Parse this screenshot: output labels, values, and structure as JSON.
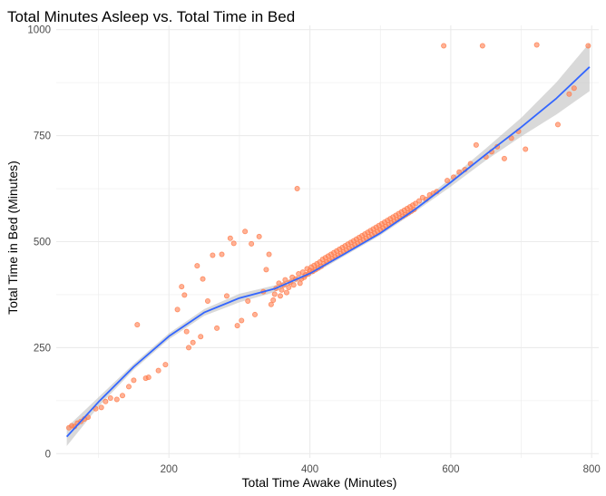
{
  "chart_data": {
    "type": "scatter",
    "title": "Total Minutes Asleep vs. Total Time in Bed",
    "xlabel": "Total Time Awake (Minutes)",
    "ylabel": "Total Time in Bed (Minutes)",
    "xlim": [
      40,
      810
    ],
    "ylim": [
      -10,
      1010
    ],
    "x_ticks": [
      200,
      400,
      600,
      800
    ],
    "y_ticks": [
      0,
      250,
      500,
      750,
      1000
    ],
    "grid": true,
    "legend": "none",
    "colors": {
      "points": "#FF7F50",
      "smooth_line": "#3366FF",
      "confidence_band": "#B3B3B3",
      "grid": "#EBEBEB"
    },
    "points": [
      [
        58,
        61
      ],
      [
        62,
        66
      ],
      [
        66,
        64
      ],
      [
        70,
        72
      ],
      [
        75,
        76
      ],
      [
        80,
        82
      ],
      [
        85,
        86
      ],
      [
        96,
        106
      ],
      [
        104,
        109
      ],
      [
        110,
        123
      ],
      [
        117,
        131
      ],
      [
        126,
        128
      ],
      [
        134,
        137
      ],
      [
        143,
        158
      ],
      [
        150,
        173
      ],
      [
        155,
        304
      ],
      [
        167,
        178
      ],
      [
        171,
        180
      ],
      [
        185,
        196
      ],
      [
        195,
        210
      ],
      [
        212,
        340
      ],
      [
        218,
        394
      ],
      [
        222,
        374
      ],
      [
        225,
        288
      ],
      [
        228,
        250
      ],
      [
        234,
        262
      ],
      [
        240,
        443
      ],
      [
        245,
        276
      ],
      [
        248,
        412
      ],
      [
        255,
        360
      ],
      [
        262,
        468
      ],
      [
        268,
        296
      ],
      [
        275,
        470
      ],
      [
        282,
        372
      ],
      [
        287,
        508
      ],
      [
        292,
        496
      ],
      [
        297,
        302
      ],
      [
        303,
        314
      ],
      [
        308,
        524
      ],
      [
        312,
        360
      ],
      [
        317,
        495
      ],
      [
        322,
        328
      ],
      [
        328,
        512
      ],
      [
        334,
        382
      ],
      [
        338,
        434
      ],
      [
        342,
        470
      ],
      [
        345,
        352
      ],
      [
        348,
        362
      ],
      [
        350,
        376
      ],
      [
        352,
        390
      ],
      [
        356,
        402
      ],
      [
        358,
        372
      ],
      [
        360,
        386
      ],
      [
        363,
        398
      ],
      [
        365,
        410
      ],
      [
        367,
        380
      ],
      [
        370,
        392
      ],
      [
        372,
        404
      ],
      [
        375,
        416
      ],
      [
        377,
        398
      ],
      [
        380,
        412
      ],
      [
        382,
        625
      ],
      [
        384,
        424
      ],
      [
        386,
        402
      ],
      [
        388,
        412
      ],
      [
        390,
        428
      ],
      [
        392,
        416
      ],
      [
        394,
        422
      ],
      [
        396,
        436
      ],
      [
        398,
        424
      ],
      [
        400,
        432
      ],
      [
        402,
        440
      ],
      [
        404,
        430
      ],
      [
        406,
        444
      ],
      [
        408,
        434
      ],
      [
        410,
        448
      ],
      [
        412,
        438
      ],
      [
        414,
        452
      ],
      [
        416,
        442
      ],
      [
        418,
        458
      ],
      [
        420,
        448
      ],
      [
        422,
        462
      ],
      [
        424,
        452
      ],
      [
        426,
        466
      ],
      [
        428,
        456
      ],
      [
        430,
        470
      ],
      [
        432,
        460
      ],
      [
        434,
        474
      ],
      [
        436,
        464
      ],
      [
        438,
        478
      ],
      [
        440,
        468
      ],
      [
        442,
        482
      ],
      [
        444,
        472
      ],
      [
        446,
        486
      ],
      [
        448,
        476
      ],
      [
        450,
        490
      ],
      [
        452,
        480
      ],
      [
        454,
        494
      ],
      [
        456,
        484
      ],
      [
        458,
        498
      ],
      [
        460,
        488
      ],
      [
        462,
        502
      ],
      [
        464,
        492
      ],
      [
        466,
        506
      ],
      [
        468,
        496
      ],
      [
        470,
        510
      ],
      [
        472,
        500
      ],
      [
        474,
        514
      ],
      [
        476,
        504
      ],
      [
        478,
        518
      ],
      [
        480,
        508
      ],
      [
        482,
        522
      ],
      [
        484,
        512
      ],
      [
        486,
        526
      ],
      [
        488,
        516
      ],
      [
        490,
        530
      ],
      [
        492,
        520
      ],
      [
        494,
        534
      ],
      [
        496,
        524
      ],
      [
        498,
        538
      ],
      [
        500,
        528
      ],
      [
        502,
        542
      ],
      [
        504,
        532
      ],
      [
        506,
        546
      ],
      [
        508,
        536
      ],
      [
        510,
        550
      ],
      [
        512,
        540
      ],
      [
        514,
        554
      ],
      [
        516,
        544
      ],
      [
        518,
        558
      ],
      [
        520,
        548
      ],
      [
        522,
        562
      ],
      [
        524,
        552
      ],
      [
        526,
        566
      ],
      [
        528,
        556
      ],
      [
        530,
        570
      ],
      [
        532,
        560
      ],
      [
        534,
        574
      ],
      [
        536,
        564
      ],
      [
        538,
        578
      ],
      [
        540,
        568
      ],
      [
        542,
        582
      ],
      [
        544,
        572
      ],
      [
        546,
        586
      ],
      [
        548,
        576
      ],
      [
        550,
        590
      ],
      [
        555,
        596
      ],
      [
        560,
        604
      ],
      [
        565,
        600
      ],
      [
        570,
        610
      ],
      [
        575,
        614
      ],
      [
        580,
        618
      ],
      [
        590,
        962
      ],
      [
        595,
        644
      ],
      [
        604,
        652
      ],
      [
        612,
        664
      ],
      [
        620,
        670
      ],
      [
        628,
        684
      ],
      [
        636,
        728
      ],
      [
        645,
        962
      ],
      [
        650,
        700
      ],
      [
        658,
        712
      ],
      [
        666,
        724
      ],
      [
        676,
        696
      ],
      [
        686,
        744
      ],
      [
        696,
        760
      ],
      [
        706,
        718
      ],
      [
        722,
        964
      ],
      [
        752,
        776
      ],
      [
        768,
        848
      ],
      [
        775,
        862
      ],
      [
        795,
        962
      ]
    ],
    "smooth_line": {
      "x": [
        55,
        100,
        150,
        200,
        250,
        300,
        350,
        400,
        450,
        500,
        550,
        600,
        650,
        700,
        750,
        797
      ],
      "y": [
        40,
        122,
        205,
        277,
        333,
        367,
        389,
        425,
        472,
        520,
        577,
        640,
        706,
        770,
        838,
        912
      ]
    },
    "confidence_band": {
      "x": [
        55,
        100,
        150,
        200,
        250,
        300,
        350,
        400,
        450,
        500,
        550,
        600,
        650,
        700,
        750,
        797
      ],
      "lower": [
        18,
        111,
        198,
        270,
        325,
        357,
        381,
        419,
        467,
        515,
        571,
        630,
        692,
        748,
        800,
        855
      ],
      "upper": [
        62,
        133,
        212,
        284,
        341,
        377,
        397,
        431,
        477,
        525,
        583,
        650,
        720,
        792,
        876,
        969
      ]
    }
  }
}
